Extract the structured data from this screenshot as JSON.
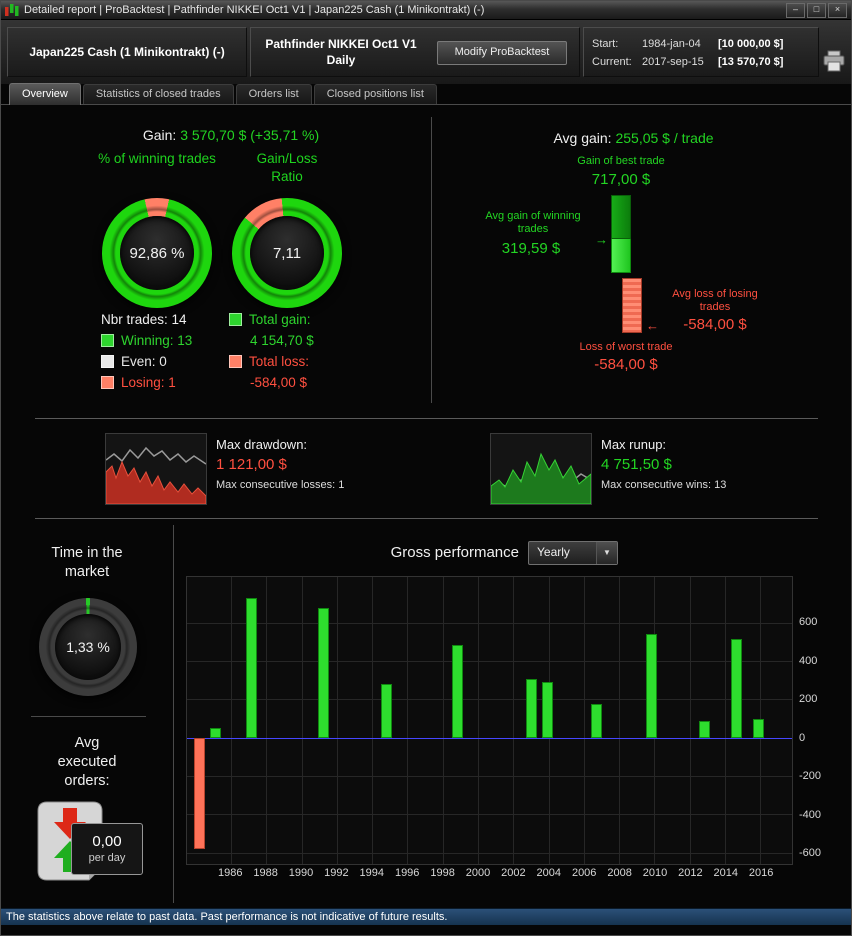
{
  "titlebar": {
    "title": "Detailed report | ProBacktest | Pathfinder NIKKEI Oct1 V1 | Japan225 Cash (1 Minikontrakt) (-)",
    "minimize": "–",
    "maximize": "□",
    "close": "×"
  },
  "header": {
    "instrument": "Japan225 Cash (1 Minikontrakt) (-)",
    "system_name": "Pathfinder NIKKEI Oct1 V1",
    "timeframe": "Daily",
    "modify_button": "Modify ProBacktest",
    "start_label": "Start:",
    "start_date": "1984-jan-04",
    "start_capital": "[10 000,00 $]",
    "current_label": "Current:",
    "current_date": "2017-sep-15",
    "current_capital": "[13 570,70 $]"
  },
  "tabs": [
    {
      "label": "Overview"
    },
    {
      "label": "Statistics of closed trades"
    },
    {
      "label": "Orders list"
    },
    {
      "label": "Closed positions list"
    }
  ],
  "overview": {
    "gain_label": "Gain:",
    "gain_value": "3 570,70 $ (+35,71 %)",
    "winning_donut": {
      "title": "% of winning trades",
      "value": "92,86 %",
      "losing_pct": 7.14,
      "ring_color": "#1ed60e",
      "segment_color": "#ff8066",
      "start_deg": -13
    },
    "ratio_donut": {
      "title": "Gain/Loss Ratio",
      "value": "7,11",
      "losing_pct": 12.33,
      "ring_color": "#1ed60e",
      "segment_color": "#ff8066",
      "start_deg": -50
    },
    "nbr_trades": "Nbr trades: 14",
    "legend": [
      {
        "label": "Winning: 13",
        "swatch": "#2ed42e",
        "text_color": "#2ed42e"
      },
      {
        "label": "Even: 0",
        "swatch": "#e8e8e8",
        "text_color": "#e8e8e8"
      },
      {
        "label": "Losing: 1",
        "swatch": "#ff8066",
        "text_color": "#ff5040"
      }
    ],
    "totals": [
      {
        "label": "Total gain:",
        "value": "4 154,70 $",
        "swatch": "#2ed42e",
        "text_color": "#2ed42e"
      },
      {
        "label": "Total loss:",
        "value": "-584,00 $",
        "swatch": "#ff8066",
        "text_color": "#ff5040"
      }
    ],
    "avg_gain_label": "Avg gain:",
    "avg_gain_value": "255,05 $ / trade",
    "best_trade_label": "Gain of best trade",
    "best_trade_value": "717,00 $",
    "avg_win_label": "Avg gain of winning trades",
    "avg_win_arrow": "→",
    "avg_win_value": "319,59 $",
    "avg_loss_label": "Avg loss of losing trades",
    "avg_loss_arrow": "←",
    "avg_loss_value": "-584,00 $",
    "worst_trade_label": "Loss of worst trade",
    "worst_trade_value": "-584,00 $",
    "drawdown": {
      "label": "Max drawdown:",
      "value": "1 121,00 $",
      "sub": "Max consecutive losses: 1"
    },
    "runup": {
      "label": "Max runup:",
      "value": "4 751,50 $",
      "sub": "Max consecutive wins: 13"
    },
    "time_in_market": {
      "title": "Time in the market",
      "value": "1,33 %",
      "active_pct": 1.33,
      "ring_color": "#3c3c3c",
      "segment_color": "#27c927",
      "start_deg": -2.4
    },
    "avg_orders": {
      "title_1": "Avg",
      "title_2": "executed",
      "title_3": "orders:",
      "value": "0,00",
      "unit": "per day"
    }
  },
  "chart_data": {
    "type": "bar",
    "title": "Gross performance",
    "period_selected": "Yearly",
    "x_range": [
      1983.5,
      2017.8
    ],
    "ylim": [
      -660,
      840
    ],
    "yticks": [
      600,
      400,
      200,
      0,
      -200,
      -400,
      -600
    ],
    "xticks": [
      1986,
      1988,
      1990,
      1992,
      1994,
      1996,
      1998,
      2000,
      2002,
      2004,
      2006,
      2008,
      2010,
      2012,
      2014,
      2016
    ],
    "bars": [
      {
        "year": 1984.2,
        "value": -584
      },
      {
        "year": 1985.1,
        "value": 50
      },
      {
        "year": 1987.1,
        "value": 730
      },
      {
        "year": 1991.2,
        "value": 680
      },
      {
        "year": 1994.8,
        "value": 280
      },
      {
        "year": 1998.8,
        "value": 485
      },
      {
        "year": 2003.0,
        "value": 305
      },
      {
        "year": 2003.9,
        "value": 290
      },
      {
        "year": 2006.7,
        "value": 175
      },
      {
        "year": 2009.8,
        "value": 540
      },
      {
        "year": 2012.8,
        "value": 90
      },
      {
        "year": 2014.6,
        "value": 515
      },
      {
        "year": 2015.9,
        "value": 100
      }
    ],
    "gain_color": "#2ede2e",
    "loss_color": "#ff7258",
    "zero_line_color": "#4646ff",
    "grid": true,
    "legend_position": "none"
  },
  "footer": "The statistics above relate to past data. Past performance is not indicative of future results."
}
